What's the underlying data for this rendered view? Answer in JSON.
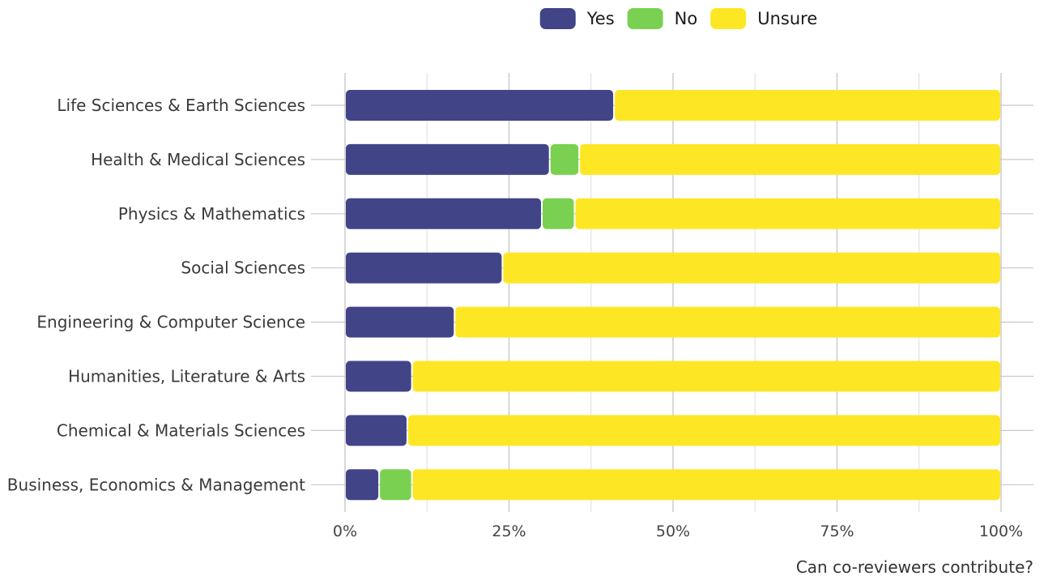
{
  "chart_data": {
    "type": "bar",
    "orientation": "horizontal",
    "stacked": true,
    "percent": true,
    "categories": [
      "Life Sciences & Earth Sciences",
      "Health & Medical Sciences",
      "Physics & Mathematics",
      "Social Sciences",
      "Engineering & Computer Science",
      "Humanities, Literature & Arts",
      "Chemical & Materials Sciences",
      "Business, Economics & Management"
    ],
    "series": [
      {
        "name": "Yes",
        "color": "#414487",
        "values": [
          41,
          31.2,
          30,
          24,
          16.7,
          10.2,
          9.5,
          5.2
        ]
      },
      {
        "name": "No",
        "color": "#7AD151",
        "values": [
          0,
          4.5,
          5,
          0,
          0,
          0,
          0,
          5
        ]
      },
      {
        "name": "Unsure",
        "color": "#FDE725",
        "values": [
          59,
          64.3,
          65,
          76,
          83.3,
          89.8,
          90.5,
          89.8
        ]
      }
    ],
    "x_ticks": [
      "0%",
      "25%",
      "50%",
      "75%",
      "100%"
    ],
    "xlim": [
      0,
      100
    ],
    "xlabel": "Can co-reviewers contribute?",
    "ylabel": "",
    "title": "",
    "legend_position": "top",
    "grid": true
  }
}
